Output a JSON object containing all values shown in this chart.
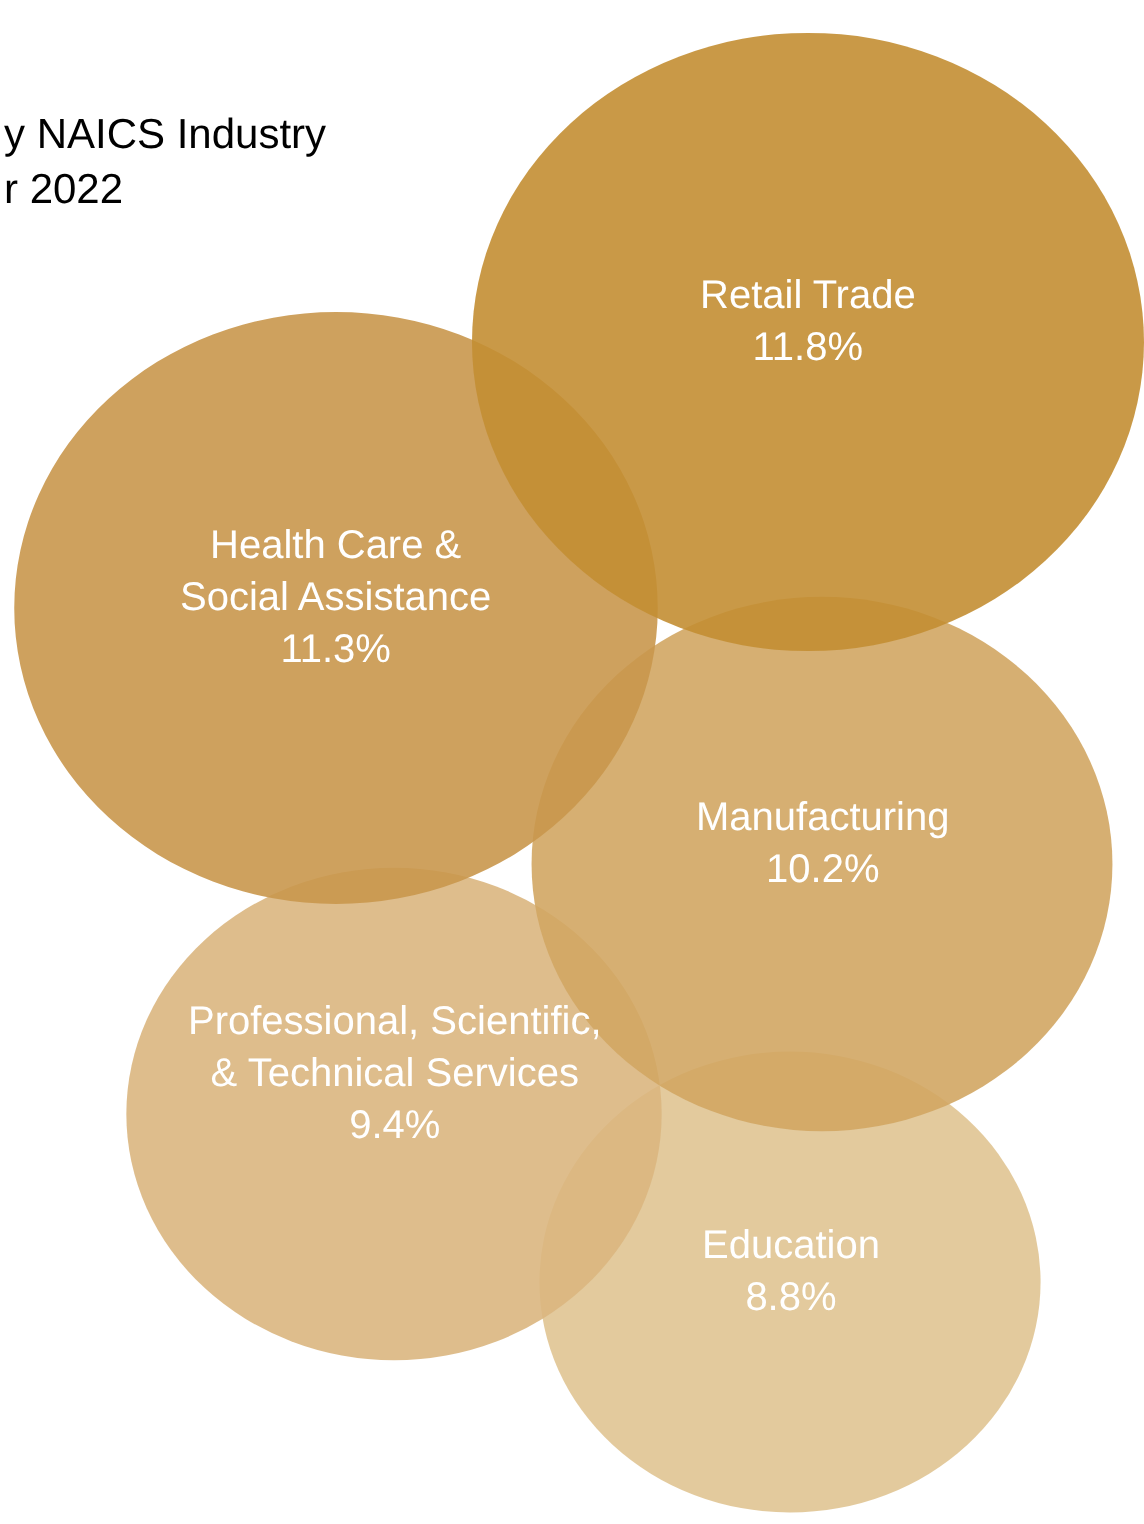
{
  "chart_data": {
    "type": "other",
    "title": "y NAICS Industry\nr 2022",
    "categories": [
      "Retail Trade",
      "Health Care &\nSocial Assistance",
      "Manufacturing",
      "Professional, Scientific,\n& Technical Services",
      "Education"
    ],
    "values": [
      11.8,
      11.3,
      10.2,
      9.4,
      8.8
    ],
    "value_labels": [
      "11.8%",
      "11.3%",
      "10.2%",
      "9.4%",
      "8.8%"
    ],
    "colors": [
      "#c38e33",
      "#c9974c",
      "#d2a663",
      "#dab680",
      "#e0c492"
    ]
  }
}
